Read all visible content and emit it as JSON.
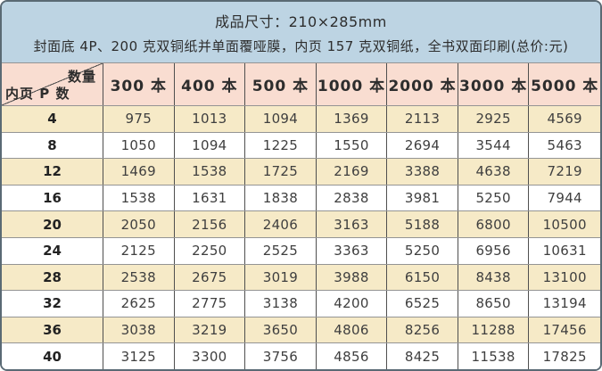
{
  "banner": {
    "line1": "成品尺寸：210×285mm",
    "line2": "封面底 4P、200 克双铜纸并单面覆哑膜，内页 157 克双铜纸，全书双面印刷(总价:元)"
  },
  "table": {
    "corner": {
      "top_right": "数量",
      "bottom_left": "内页 P 数"
    },
    "columns": [
      "300 本",
      "400 本",
      "500 本",
      "1000 本",
      "2000 本",
      "3000 本",
      "5000 本"
    ],
    "rows": [
      {
        "pages": "4",
        "prices": [
          "975",
          "1013",
          "1094",
          "1369",
          "2113",
          "2925",
          "4569"
        ]
      },
      {
        "pages": "8",
        "prices": [
          "1050",
          "1094",
          "1225",
          "1550",
          "2694",
          "3544",
          "5463"
        ]
      },
      {
        "pages": "12",
        "prices": [
          "1469",
          "1538",
          "1725",
          "2169",
          "3388",
          "4638",
          "7219"
        ]
      },
      {
        "pages": "16",
        "prices": [
          "1538",
          "1631",
          "1838",
          "2838",
          "3981",
          "5250",
          "7944"
        ]
      },
      {
        "pages": "20",
        "prices": [
          "2050",
          "2156",
          "2406",
          "3163",
          "5188",
          "6800",
          "10500"
        ]
      },
      {
        "pages": "24",
        "prices": [
          "2125",
          "2250",
          "2525",
          "3363",
          "5250",
          "6956",
          "10631"
        ]
      },
      {
        "pages": "28",
        "prices": [
          "2538",
          "2675",
          "3019",
          "3988",
          "6150",
          "8438",
          "13100"
        ]
      },
      {
        "pages": "32",
        "prices": [
          "2625",
          "2775",
          "3138",
          "4200",
          "6525",
          "8650",
          "13194"
        ]
      },
      {
        "pages": "36",
        "prices": [
          "3038",
          "3219",
          "3650",
          "4806",
          "8256",
          "11288",
          "17456"
        ]
      },
      {
        "pages": "40",
        "prices": [
          "3125",
          "3300",
          "3756",
          "4856",
          "8425",
          "11538",
          "17825"
        ]
      }
    ]
  },
  "colors": {
    "banner_bg": "#bdd4e3",
    "header_bg": "#f9ddd1",
    "row_alt_bg": "#f6eac7",
    "row_bg": "#ffffff",
    "text": "#2d2d2d",
    "grid_dark": "#4f4f4f",
    "grid_light": "#949494",
    "frame_border": "#5a6a74"
  }
}
